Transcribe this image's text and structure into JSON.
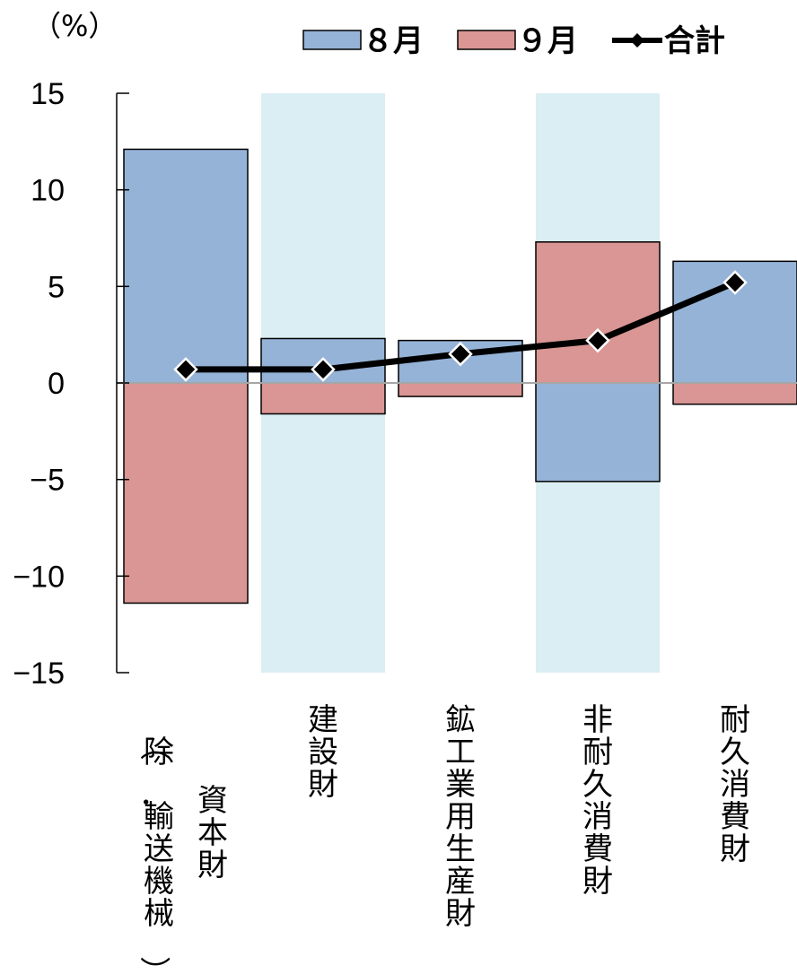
{
  "chart_data": {
    "type": "bar",
    "y_unit": "（%）",
    "categories": [
      [
        "資本財",
        "（除．輸送機械）"
      ],
      [
        "建設財"
      ],
      [
        "鉱工業用生産財"
      ],
      [
        "非耐久消費財"
      ],
      [
        "耐久消費財"
      ]
    ],
    "series": [
      {
        "name": "８月",
        "kind": "bar",
        "values": [
          12.1,
          2.3,
          2.2,
          -5.1,
          6.3
        ]
      },
      {
        "name": "９月",
        "kind": "bar",
        "values": [
          -11.4,
          -1.6,
          -0.7,
          7.3,
          -1.1
        ]
      },
      {
        "name": "合計",
        "kind": "line",
        "values": [
          0.7,
          0.7,
          1.5,
          2.2,
          5.2
        ]
      }
    ],
    "ylim": [
      -15,
      15
    ],
    "yticks": [
      15,
      10,
      5,
      0,
      -5,
      -10,
      -15
    ],
    "ytick_labels": [
      "15",
      "10",
      "5",
      "0",
      "−5",
      "−10",
      "−15"
    ],
    "shaded_categories": [
      1,
      3
    ],
    "legend_position": "top",
    "colors": {
      "aug": "#95b3d7",
      "sep": "#d99694",
      "shade": "#daeef3",
      "total": "#000000",
      "axis": "#000000",
      "zero_line": "#a6a6a6"
    }
  }
}
